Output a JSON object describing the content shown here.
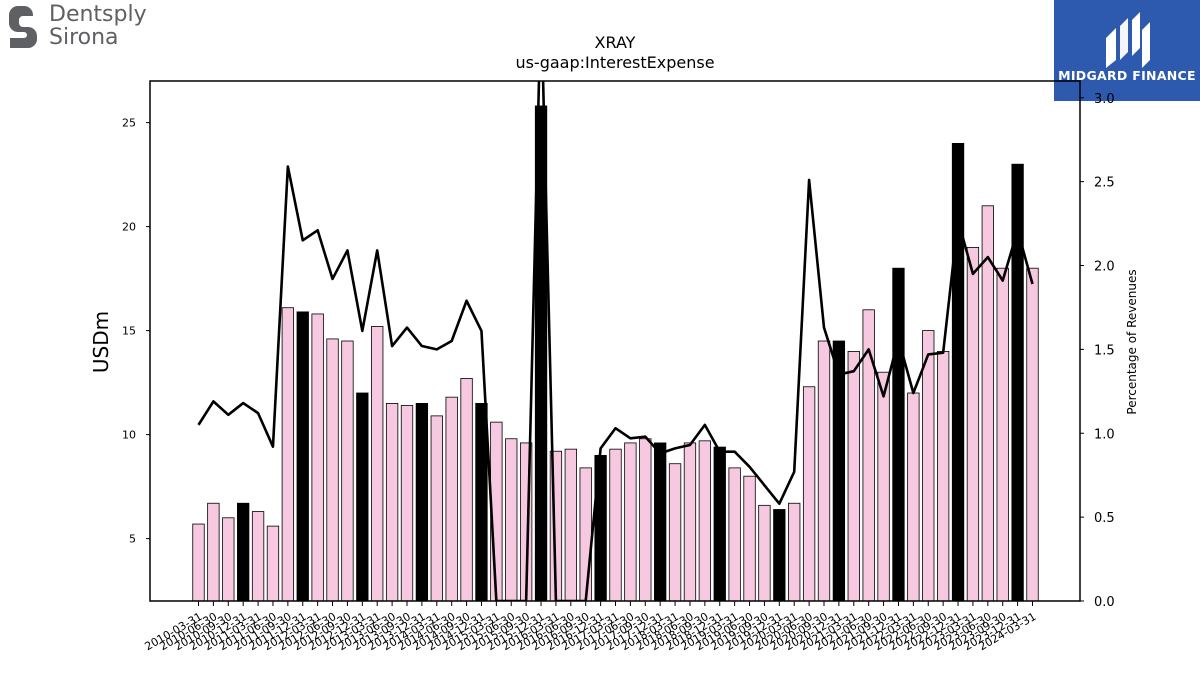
{
  "brand_left": {
    "line1": "Dentsply",
    "line2": "Sirona"
  },
  "brand_right": {
    "name": "MIDGARD FINANCE",
    "bg_color": "#2d5aae"
  },
  "chart_data": {
    "type": "bar",
    "title": "XRAY",
    "subtitle": "us-gaap:InterestExpense",
    "ylabel": "USDm",
    "ylabel_right": "Percentage of Revenues",
    "ylim": [
      2,
      27
    ],
    "ylim_right": [
      0,
      3.1
    ],
    "yticks": [
      5,
      10,
      15,
      20,
      25
    ],
    "yticks_right": [
      0.0,
      0.5,
      1.0,
      1.5,
      2.0,
      2.5,
      3.0
    ],
    "categories": [
      "2010-03-31",
      "2010-06-30",
      "2010-09-30",
      "2010-12-31",
      "2011-03-31",
      "2011-06-30",
      "2011-09-30",
      "2011-12-31",
      "2012-03-31",
      "2012-06-30",
      "2012-09-30",
      "2012-12-31",
      "2013-03-31",
      "2013-06-30",
      "2013-09-30",
      "2013-12-31",
      "2014-03-31",
      "2014-06-30",
      "2014-09-30",
      "2014-12-31",
      "2015-03-31",
      "2015-06-30",
      "2015-09-30",
      "2015-12-31",
      "2016-03-31",
      "2016-06-30",
      "2016-09-30",
      "2016-12-31",
      "2017-03-31",
      "2017-06-30",
      "2017-09-30",
      "2017-12-31",
      "2018-03-31",
      "2018-06-30",
      "2018-09-30",
      "2018-12-31",
      "2019-03-31",
      "2019-06-30",
      "2019-09-30",
      "2019-12-31",
      "2020-03-31",
      "2020-06-30",
      "2020-09-30",
      "2020-12-31",
      "2021-03-31",
      "2021-06-30",
      "2021-09-30",
      "2021-12-31",
      "2022-03-31",
      "2022-06-30",
      "2022-09-30",
      "2022-12-31",
      "2023-03-31",
      "2023-06-30",
      "2023-09-30",
      "2023-12-31",
      "2024-03-31"
    ],
    "bar_values": [
      5.7,
      6.7,
      6.0,
      6.7,
      6.3,
      5.6,
      16.1,
      15.9,
      15.8,
      14.6,
      14.5,
      12.0,
      15.2,
      11.5,
      11.4,
      11.5,
      10.9,
      11.8,
      12.7,
      11.5,
      10.6,
      9.8,
      9.6,
      25.8,
      9.2,
      9.3,
      8.4,
      9.0,
      9.3,
      9.6,
      9.8,
      9.6,
      8.6,
      9.6,
      9.7,
      9.4,
      8.4,
      8.0,
      6.6,
      6.4,
      6.7,
      12.3,
      14.5,
      14.5,
      14.0,
      16.0,
      13.0,
      18.0,
      12.0,
      15.0,
      14.0,
      24.0,
      19.0,
      21.0,
      18.0,
      23.0,
      18.0
    ],
    "bar_highlight": [
      false,
      false,
      false,
      true,
      false,
      false,
      false,
      true,
      false,
      false,
      false,
      true,
      false,
      false,
      false,
      true,
      false,
      false,
      false,
      true,
      false,
      false,
      false,
      true,
      false,
      false,
      false,
      true,
      false,
      false,
      false,
      true,
      false,
      false,
      false,
      true,
      false,
      false,
      false,
      true,
      false,
      false,
      false,
      true,
      false,
      false,
      false,
      true,
      false,
      false,
      false,
      true,
      false,
      false,
      false,
      true,
      false
    ],
    "line_values": [
      1.05,
      1.19,
      1.11,
      1.18,
      1.12,
      0.92,
      2.59,
      2.15,
      2.21,
      1.92,
      2.09,
      1.61,
      2.09,
      1.52,
      1.63,
      1.52,
      1.5,
      1.55,
      1.79,
      1.61,
      0.0,
      0.0,
      0.0,
      3.6,
      0.0,
      0.0,
      0.0,
      0.91,
      1.03,
      0.97,
      0.98,
      0.88,
      0.91,
      0.93,
      1.05,
      0.89,
      0.89,
      0.8,
      0.69,
      0.58,
      0.77,
      2.51,
      1.63,
      1.35,
      1.37,
      1.5,
      1.22,
      1.56,
      1.24,
      1.47,
      1.48,
      2.27,
      1.95,
      2.05,
      1.91,
      2.21,
      1.89
    ],
    "colors": {
      "bar": "#f7c9e0",
      "bar_highlight": "#000000",
      "line": "#000000"
    },
    "grid": false,
    "legend": "none"
  }
}
